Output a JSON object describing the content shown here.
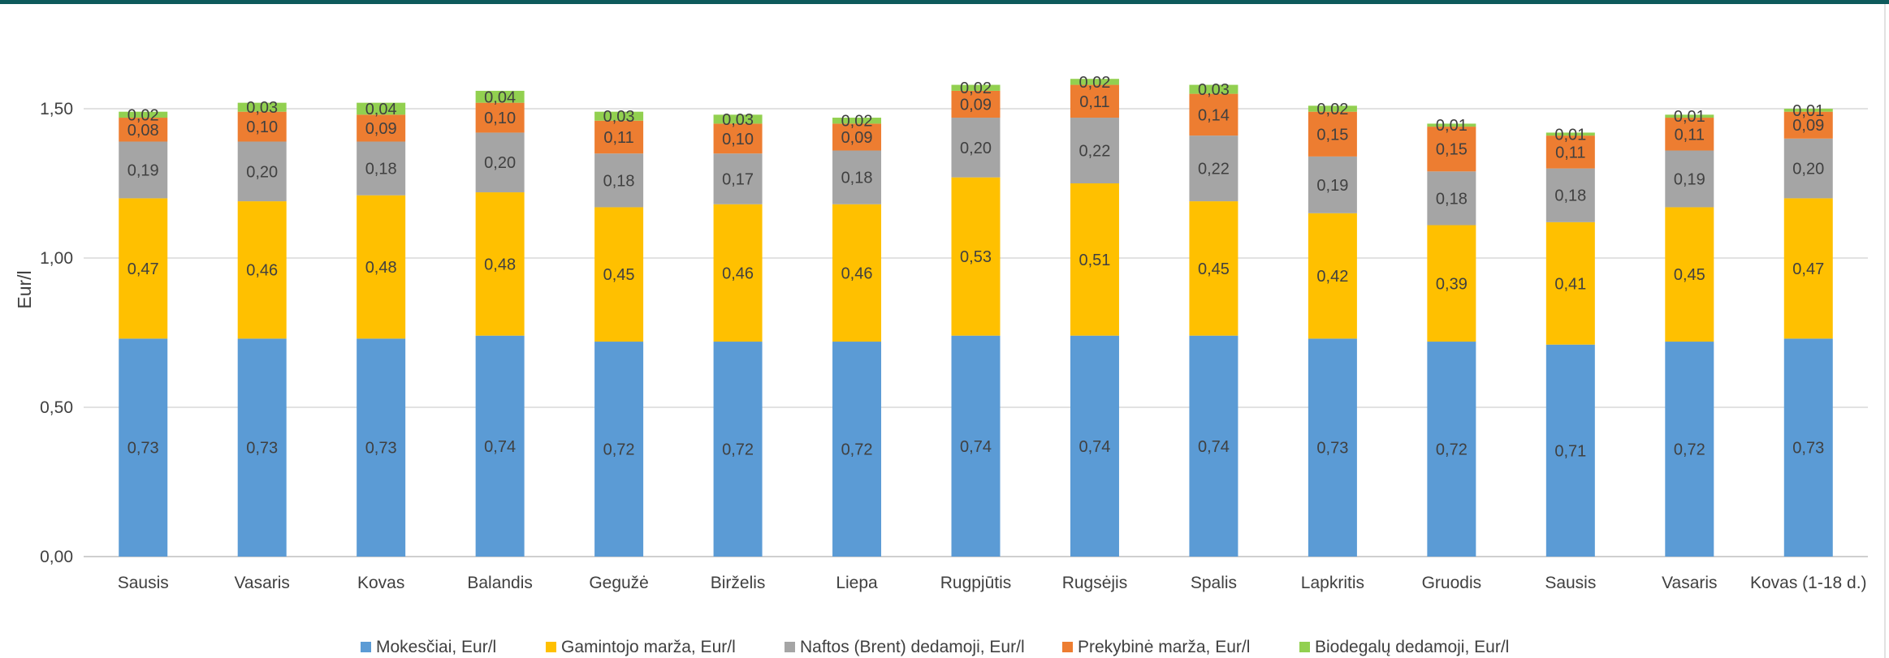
{
  "chart_data": {
    "type": "bar",
    "stacked": true,
    "title": "",
    "xlabel": "",
    "ylabel": "Eur/l",
    "ylim": [
      0,
      1.75
    ],
    "yticks": [
      "0,00",
      "0,50",
      "1,00",
      "1,50"
    ],
    "grid": true,
    "legend_position": "bottom",
    "categories": [
      "Sausis",
      "Vasaris",
      "Kovas",
      "Balandis",
      "Gegužė",
      "Birželis",
      "Liepa",
      "Rugpjūtis",
      "Rugsėjis",
      "Spalis",
      "Lapkritis",
      "Gruodis",
      "Sausis",
      "Vasaris",
      "Kovas (1-18 d.)"
    ],
    "series": [
      {
        "name": "Mokesčiai, Eur/l",
        "color": "#5b9bd5",
        "values": [
          0.73,
          0.73,
          0.73,
          0.74,
          0.72,
          0.72,
          0.72,
          0.74,
          0.74,
          0.74,
          0.73,
          0.72,
          0.71,
          0.72,
          0.73
        ],
        "labels": [
          "0,73",
          "0,73",
          "0,73",
          "0,74",
          "0,72",
          "0,72",
          "0,72",
          "0,74",
          "0,74",
          "0,74",
          "0,73",
          "0,72",
          "0,71",
          "0,72",
          "0,73"
        ]
      },
      {
        "name": "Gamintojo marža, Eur/l",
        "color": "#ffc000",
        "values": [
          0.47,
          0.46,
          0.48,
          0.48,
          0.45,
          0.46,
          0.46,
          0.53,
          0.51,
          0.45,
          0.42,
          0.39,
          0.41,
          0.45,
          0.47
        ],
        "labels": [
          "0,47",
          "0,46",
          "0,48",
          "0,48",
          "0,45",
          "0,46",
          "0,46",
          "0,53",
          "0,51",
          "0,45",
          "0,42",
          "0,39",
          "0,41",
          "0,45",
          "0,47"
        ]
      },
      {
        "name": "Naftos (Brent) dedamoji, Eur/l",
        "color": "#a5a5a5",
        "values": [
          0.19,
          0.2,
          0.18,
          0.2,
          0.18,
          0.17,
          0.18,
          0.2,
          0.22,
          0.22,
          0.19,
          0.18,
          0.18,
          0.19,
          0.2
        ],
        "labels": [
          "0,19",
          "0,20",
          "0,18",
          "0,20",
          "0,18",
          "0,17",
          "0,18",
          "0,20",
          "0,22",
          "0,22",
          "0,19",
          "0,18",
          "0,18",
          "0,19",
          "0,20"
        ]
      },
      {
        "name": "Prekybinė marža, Eur/l",
        "color": "#ed7d31",
        "values": [
          0.08,
          0.1,
          0.09,
          0.1,
          0.11,
          0.1,
          0.09,
          0.09,
          0.11,
          0.14,
          0.15,
          0.15,
          0.11,
          0.11,
          0.09
        ],
        "labels": [
          "0,08",
          "0,10",
          "0,09",
          "0,10",
          "0,11",
          "0,10",
          "0,09",
          "0,09",
          "0,11",
          "0,14",
          "0,15",
          "0,15",
          "0,11",
          "0,11",
          "0,09"
        ]
      },
      {
        "name": "Biodegalų dedamoji, Eur/l",
        "color": "#92d050",
        "values": [
          0.02,
          0.03,
          0.04,
          0.04,
          0.03,
          0.03,
          0.02,
          0.02,
          0.02,
          0.03,
          0.02,
          0.01,
          0.01,
          0.01,
          0.01
        ],
        "labels": [
          "0,02",
          "0,03",
          "0,04",
          "0,04",
          "0,03",
          "0,03",
          "0,02",
          "0,02",
          "0,02",
          "0,03",
          "0,02",
          "0,01",
          "0,01",
          "0,01",
          "0,01"
        ]
      }
    ]
  }
}
